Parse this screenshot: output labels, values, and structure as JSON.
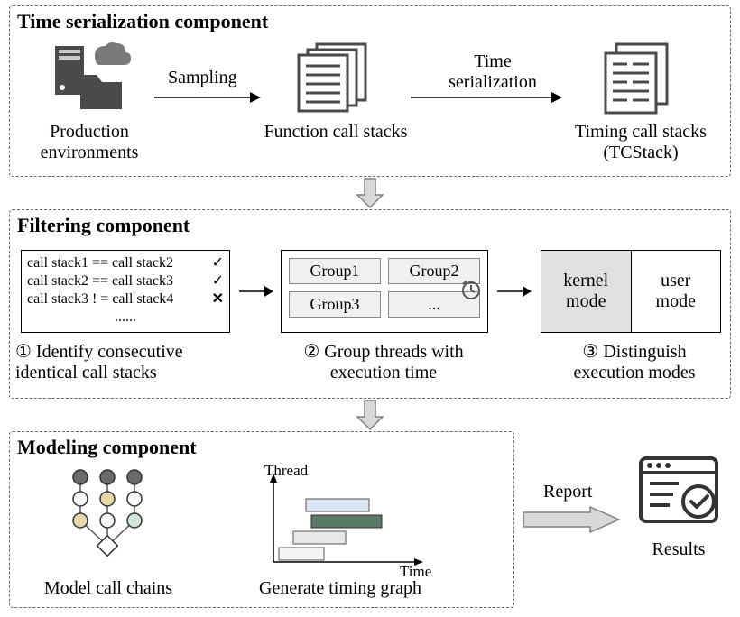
{
  "box1": {
    "title": "Time serialization component",
    "item1": "Production<br>environments",
    "item2": "Function call stacks",
    "item3": "Timing call stacks<br>(TCStack)",
    "arrow1": "Sampling",
    "arrow2": "Time<br>serialization"
  },
  "box2": {
    "title": "Filtering component",
    "step1_lines": [
      "call stack1 == call stack2",
      "call stack2 == call stack3",
      "call stack3 ! = call stack4",
      "......"
    ],
    "step1_label": "① Identify consecutive<br>identical call stacks",
    "step2_groups": [
      "Group1",
      "Group2",
      "Group3",
      "..."
    ],
    "step2_label": "② Group threads with<br>execution time",
    "step3_modes": [
      "kernel<br>mode",
      "user<br>mode"
    ],
    "step3_label": "③ Distinguish<br>execution modes"
  },
  "box3": {
    "title": "Modeling component",
    "item1": "Model call chains",
    "item2": "Generate timing graph",
    "yaxis": "Thread",
    "xaxis": "Time"
  },
  "report_label": "Report",
  "results_label": "Results",
  "colors": {
    "border": "#666666",
    "icon_dark": "#4a4a4a",
    "icon_gray": "#7a7a7a",
    "shade": "#e8e8e8",
    "node1": "#6a6a6a",
    "node2": "#f0f0f0",
    "node3": "#e8d9a8",
    "node4": "#d0e8d8",
    "bar1": "#d8e4f0",
    "bar2": "#5a7a68",
    "bar3": "#e8e8e8",
    "arrow_fill": "#d8d8d8"
  }
}
